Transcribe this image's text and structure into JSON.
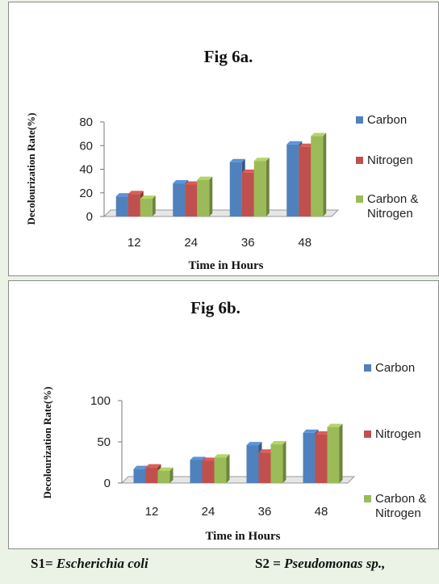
{
  "chart_data": [
    {
      "type": "bar",
      "title": "Fig  6a.",
      "xlabel": "Time in Hours",
      "ylabel": "Decolourization Rate(%)",
      "categories": [
        "12",
        "24",
        "36",
        "48"
      ],
      "yticks": [
        0,
        20,
        40,
        60,
        80
      ],
      "ylim": [
        0,
        80
      ],
      "legend_position": "right",
      "series": [
        {
          "name": "Carbon",
          "color": "#4f81bd",
          "values": [
            17,
            28,
            46,
            61
          ]
        },
        {
          "name": "Nitrogen",
          "color": "#c0504d",
          "values": [
            19,
            27,
            37,
            59
          ]
        },
        {
          "name": "Carbon & Nitrogen",
          "color": "#9bbb59",
          "values": [
            15,
            31,
            47,
            68
          ]
        }
      ]
    },
    {
      "type": "bar",
      "title": "Fig  6b.",
      "xlabel": "Time in Hours",
      "ylabel": "Decolourization Rate(%)",
      "categories": [
        "12",
        "24",
        "36",
        "48"
      ],
      "yticks": [
        0,
        50,
        100
      ],
      "ylim": [
        0,
        100
      ],
      "legend_position": "right",
      "series": [
        {
          "name": "Carbon",
          "color": "#4f81bd",
          "values": [
            17,
            28,
            46,
            61
          ]
        },
        {
          "name": "Nitrogen",
          "color": "#c0504d",
          "values": [
            19,
            27,
            37,
            59
          ]
        },
        {
          "name": "Carbon & Nitrogen",
          "color": "#9bbb59",
          "values": [
            15,
            31,
            47,
            68
          ]
        }
      ]
    }
  ],
  "footer": {
    "s1_prefix": "S1= ",
    "s1_name": "Escherichia coli",
    "s2_prefix": "S2 = ",
    "s2_name": "Pseudomonas sp.,"
  }
}
